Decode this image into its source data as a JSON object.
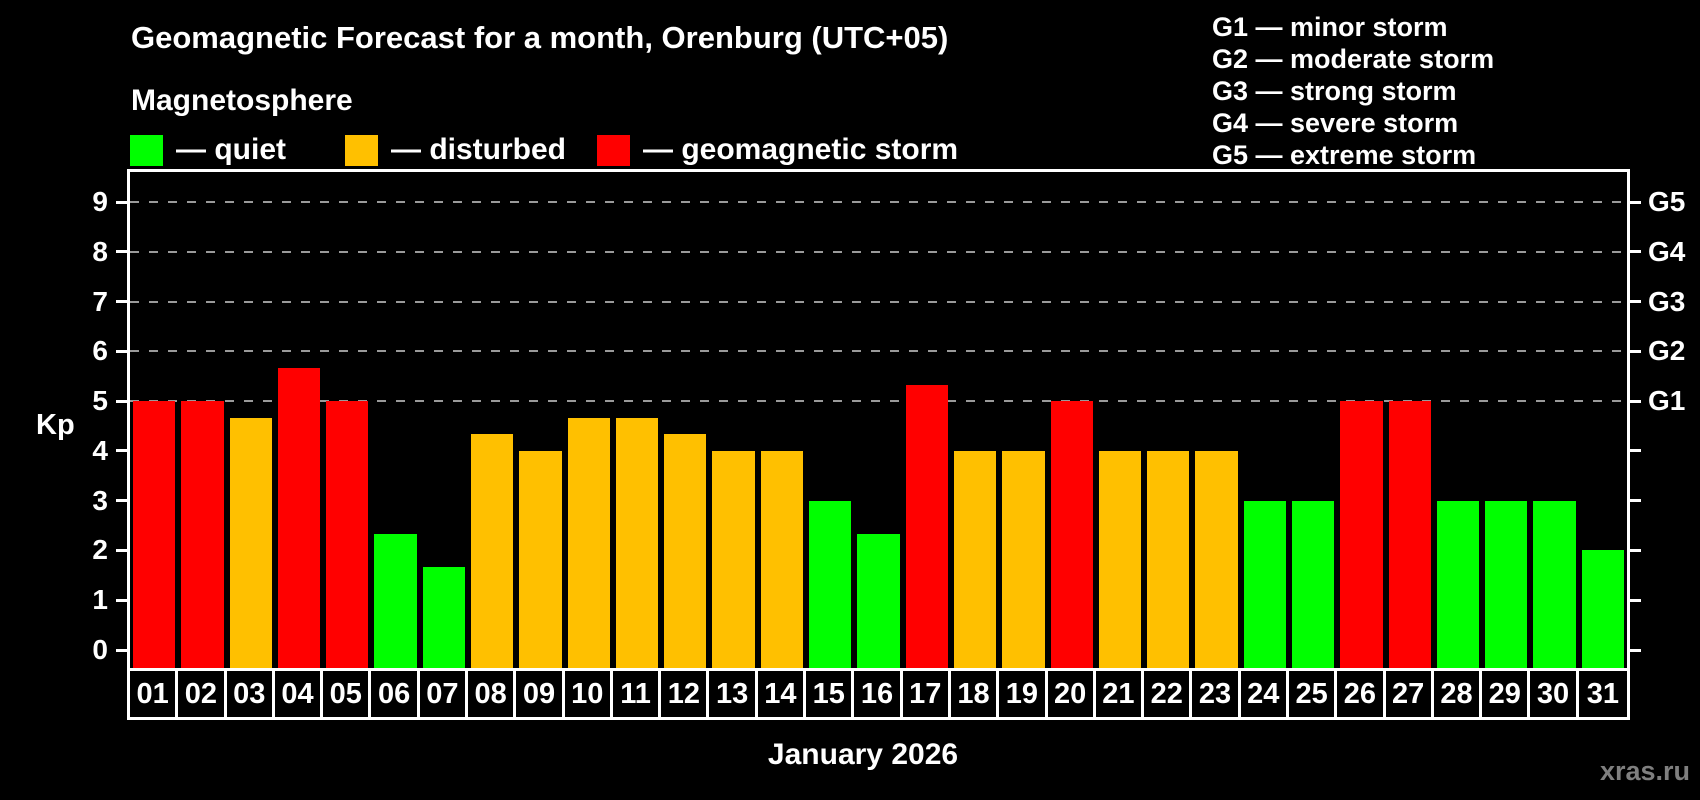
{
  "title": "Geomagnetic Forecast for a month, Orenburg (UTC+05)",
  "subtitle": "Magnetosphere",
  "legend": {
    "items": [
      {
        "label": "— quiet",
        "status": "quiet"
      },
      {
        "label": "— disturbed",
        "status": "disturbed"
      },
      {
        "label": "— geomagnetic storm",
        "status": "storm"
      }
    ]
  },
  "g_legend": [
    "G1 — minor storm",
    "G2 — moderate storm",
    "G3 — strong storm",
    "G4 — severe storm",
    "G5 — extreme storm"
  ],
  "colors": {
    "quiet": "#00ff00",
    "disturbed": "#ffc000",
    "storm": "#ff0000",
    "background": "#000000",
    "axis_text": "#ffffff",
    "grid": "#9a9a9a",
    "watermark": "#7f7f7f"
  },
  "y_axis": {
    "label": "Kp",
    "ticks": [
      0,
      1,
      2,
      3,
      4,
      5,
      6,
      7,
      8,
      9
    ]
  },
  "right_axis": {
    "labels": [
      {
        "text": "G1",
        "value": 5
      },
      {
        "text": "G2",
        "value": 6
      },
      {
        "text": "G3",
        "value": 7
      },
      {
        "text": "G4",
        "value": 8
      },
      {
        "text": "G5",
        "value": 9
      }
    ]
  },
  "x_axis": {
    "month_label": "January 2026"
  },
  "watermark": "xras.ru",
  "chart_data": {
    "type": "bar",
    "title": "Geomagnetic Forecast for a month, Orenburg (UTC+05)",
    "xlabel": "January 2026",
    "ylabel": "Kp",
    "ylim": [
      0,
      9.6
    ],
    "grid": "horizontal dashed lines at Kp 5-9 (G1-G5)",
    "gridlines_at": [
      5,
      6,
      7,
      8,
      9
    ],
    "legend_position": "top-left statuses, top-right G-scale",
    "categories": [
      "01",
      "02",
      "03",
      "04",
      "05",
      "06",
      "07",
      "08",
      "09",
      "10",
      "11",
      "12",
      "13",
      "14",
      "15",
      "16",
      "17",
      "18",
      "19",
      "20",
      "21",
      "22",
      "23",
      "24",
      "25",
      "26",
      "27",
      "28",
      "29",
      "30",
      "31"
    ],
    "values": [
      5,
      5,
      4.67,
      5.67,
      5,
      2.33,
      1.67,
      4.33,
      4,
      4.67,
      4.67,
      4.33,
      4,
      4,
      3,
      2.33,
      5.33,
      4,
      4,
      5,
      4,
      4,
      4,
      3,
      3,
      5,
      5,
      3,
      3,
      3,
      2
    ],
    "statuses": [
      "storm",
      "storm",
      "disturbed",
      "storm",
      "storm",
      "quiet",
      "quiet",
      "disturbed",
      "disturbed",
      "disturbed",
      "disturbed",
      "disturbed",
      "disturbed",
      "disturbed",
      "quiet",
      "quiet",
      "storm",
      "disturbed",
      "disturbed",
      "storm",
      "disturbed",
      "disturbed",
      "disturbed",
      "quiet",
      "quiet",
      "storm",
      "storm",
      "quiet",
      "quiet",
      "quiet",
      "quiet"
    ]
  }
}
